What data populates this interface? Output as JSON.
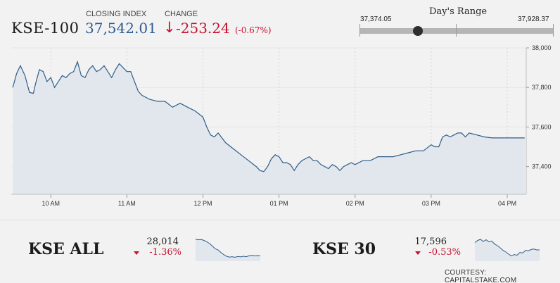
{
  "header": {
    "index_name": "KSE-100",
    "closing_label": "CLOSING INDEX",
    "closing_value": "37,542.01",
    "change_label": "CHANGE",
    "change_direction": "down",
    "change_arrow": "↓",
    "change_value": "-253.24",
    "change_pct": "(-0.67%)"
  },
  "days_range": {
    "title": "Day's Range",
    "low_label": "37,374.05",
    "high_label": "37,928.37",
    "current_position": 0.3
  },
  "colors": {
    "accent_blue": "#2d5c8f",
    "negative_red": "#c8102e",
    "line": "#2f5d8a",
    "area_fill": "#e1e7ed"
  },
  "chart_data": {
    "type": "area",
    "x_labels": [
      "10 AM",
      "11 AM",
      "12 PM",
      "01 PM",
      "02 PM",
      "03 PM",
      "04 PM"
    ],
    "x_label_times": [
      10,
      11,
      12,
      13,
      14,
      15,
      16
    ],
    "y_ticks": [
      38000,
      37800,
      37600,
      37400
    ],
    "y_tick_labels": [
      "38,000",
      "37,800",
      "37,600",
      "37,400"
    ],
    "ylim": [
      37260,
      38000
    ],
    "xlim": [
      9.48,
      16.25
    ],
    "grid": true,
    "x": [
      9.5,
      9.55,
      9.6,
      9.66,
      9.72,
      9.77,
      9.8,
      9.85,
      9.9,
      9.95,
      10.0,
      10.05,
      10.1,
      10.15,
      10.2,
      10.25,
      10.3,
      10.35,
      10.4,
      10.45,
      10.5,
      10.55,
      10.6,
      10.65,
      10.7,
      10.75,
      10.8,
      10.85,
      10.9,
      10.95,
      11.0,
      11.05,
      11.08,
      11.15,
      11.2,
      11.3,
      11.4,
      11.5,
      11.6,
      11.7,
      11.8,
      11.9,
      12.0,
      12.05,
      12.1,
      12.15,
      12.2,
      12.3,
      12.4,
      12.5,
      12.6,
      12.7,
      12.75,
      12.8,
      12.85,
      12.9,
      12.95,
      13.0,
      13.05,
      13.1,
      13.15,
      13.2,
      13.25,
      13.3,
      13.35,
      13.4,
      13.45,
      13.5,
      13.55,
      13.6,
      13.65,
      13.7,
      13.75,
      13.8,
      13.85,
      13.9,
      13.95,
      14.0,
      14.05,
      14.1,
      14.2,
      14.3,
      14.4,
      14.5,
      14.6,
      14.7,
      14.8,
      14.9,
      15.0,
      15.05,
      15.1,
      15.15,
      15.2,
      15.25,
      15.3,
      15.35,
      15.4,
      15.45,
      15.5,
      15.6,
      15.7,
      15.8,
      15.9,
      16.0,
      16.1,
      16.23
    ],
    "y": [
      37800,
      37870,
      37910,
      37860,
      37775,
      37770,
      37820,
      37890,
      37880,
      37830,
      37850,
      37800,
      37830,
      37860,
      37850,
      37870,
      37880,
      37930,
      37860,
      37850,
      37890,
      37910,
      37880,
      37890,
      37910,
      37880,
      37850,
      37890,
      37920,
      37900,
      37880,
      37880,
      37850,
      37780,
      37760,
      37740,
      37730,
      37730,
      37700,
      37720,
      37700,
      37680,
      37650,
      37600,
      37560,
      37550,
      37570,
      37520,
      37490,
      37460,
      37430,
      37400,
      37380,
      37375,
      37400,
      37440,
      37460,
      37450,
      37420,
      37420,
      37410,
      37380,
      37410,
      37430,
      37440,
      37450,
      37430,
      37430,
      37410,
      37400,
      37390,
      37410,
      37400,
      37380,
      37400,
      37410,
      37420,
      37410,
      37420,
      37430,
      37430,
      37450,
      37450,
      37450,
      37460,
      37470,
      37480,
      37480,
      37510,
      37500,
      37500,
      37550,
      37560,
      37550,
      37560,
      37570,
      37570,
      37550,
      37570,
      37560,
      37550,
      37545,
      37545,
      37545,
      37545,
      37545
    ]
  },
  "mini_indexes": [
    {
      "name": "KSE ALL",
      "value": "28,014",
      "change": "-1.36%",
      "direction": "down",
      "spark": [
        0.1,
        0.12,
        0.11,
        0.15,
        0.22,
        0.3,
        0.42,
        0.55,
        0.6,
        0.72,
        0.82,
        0.9,
        0.94,
        0.92,
        0.95,
        0.91,
        0.93,
        0.9,
        0.92,
        0.88,
        0.86,
        0.88,
        0.87,
        0.88
      ]
    },
    {
      "name": "KSE 30",
      "value": "17,596",
      "change": "-0.53%",
      "direction": "down",
      "spark": [
        0.25,
        0.15,
        0.1,
        0.2,
        0.12,
        0.22,
        0.18,
        0.32,
        0.4,
        0.5,
        0.62,
        0.7,
        0.8,
        0.88,
        0.82,
        0.85,
        0.72,
        0.74,
        0.62,
        0.64,
        0.58,
        0.56,
        0.6,
        0.6
      ]
    }
  ],
  "footer": {
    "courtesy": "COURTESY: CAPITALSTAKE.COM"
  }
}
